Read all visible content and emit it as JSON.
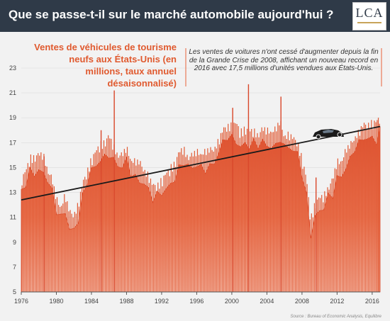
{
  "header": {
    "title": "Que se passe-t-il sur le marché automobile aujourd'hui ?",
    "logo_text": "LCA"
  },
  "chart_data": {
    "type": "area",
    "title": "Ventes de véhicules de tourisme neufs aux États-Unis (en millions, taux annuel désaisonnalisé)",
    "annotation": "Les ventes de voitures n'ont cessé d'augmenter depuis la fin de la Grande Crise de 2008, affichant un nouveau record en 2016 avec 17,5 millions d'unités vendues aux États-Unis.",
    "source": "Source : Bureau of Economic Analysis, Equilibre",
    "ylim": [
      5,
      23
    ],
    "xlim": [
      1976,
      2016.9
    ],
    "y_ticks": [
      5,
      7,
      9,
      11,
      13,
      15,
      17,
      19,
      21,
      23
    ],
    "x_ticks": [
      1976,
      1980,
      1984,
      1988,
      1992,
      1996,
      2000,
      2004,
      2008,
      2012,
      2016
    ],
    "series_color": "#e8613a",
    "trend_line": {
      "x": [
        1976,
        2016.9
      ],
      "y": [
        12.4,
        18.3
      ]
    },
    "x": [
      1976,
      1976.5,
      1977,
      1977.5,
      1978,
      1978.5,
      1979,
      1979.5,
      1980,
      1980.5,
      1981,
      1981.5,
      1982,
      1982.5,
      1983,
      1983.5,
      1984,
      1984.5,
      1985,
      1985.5,
      1986,
      1986.5,
      1987,
      1987.5,
      1988,
      1988.5,
      1989,
      1989.5,
      1990,
      1990.5,
      1991,
      1991.5,
      1992,
      1992.5,
      1993,
      1993.5,
      1994,
      1994.5,
      1995,
      1995.5,
      1996,
      1996.5,
      1997,
      1997.5,
      1998,
      1998.5,
      1999,
      1999.5,
      2000,
      2000.5,
      2001,
      2001.5,
      2002,
      2002.5,
      2003,
      2003.5,
      2004,
      2004.5,
      2005,
      2005.5,
      2006,
      2006.5,
      2007,
      2007.5,
      2008,
      2008.5,
      2009,
      2009.5,
      2010,
      2010.5,
      2011,
      2011.5,
      2012,
      2012.5,
      2013,
      2013.5,
      2014,
      2014.5,
      2015,
      2015.5,
      2016,
      2016.5,
      2016.9
    ],
    "values": [
      13.0,
      13.4,
      14.7,
      14.8,
      14.8,
      14.9,
      13.8,
      12.9,
      11.3,
      10.8,
      11.6,
      10.2,
      10.2,
      10.9,
      12.5,
      13.6,
      14.6,
      15.0,
      15.8,
      16.0,
      16.3,
      15.6,
      15.0,
      14.8,
      15.4,
      14.6,
      14.3,
      14.2,
      13.8,
      13.2,
      12.3,
      12.5,
      12.9,
      13.2,
      13.9,
      14.3,
      15.0,
      15.4,
      14.8,
      14.8,
      15.1,
      15.1,
      15.1,
      15.2,
      15.5,
      16.0,
      16.8,
      17.3,
      17.3,
      17.3,
      16.8,
      17.1,
      16.7,
      16.8,
      16.6,
      16.9,
      16.8,
      16.9,
      16.9,
      17.5,
      16.5,
      16.5,
      16.1,
      16.0,
      14.6,
      12.9,
      9.8,
      11.1,
      11.3,
      11.6,
      12.4,
      12.8,
      14.3,
      14.5,
      15.2,
      15.6,
      16.4,
      16.7,
      17.2,
      17.4,
      17.5,
      17.4,
      18.1
    ],
    "spikes": [
      {
        "x": 1986.6,
        "y": 21.2
      },
      {
        "x": 1985.1,
        "y": 18.0
      },
      {
        "x": 2001.9,
        "y": 21.7
      },
      {
        "x": 2005.6,
        "y": 20.7
      },
      {
        "x": 2000.1,
        "y": 19.8
      },
      {
        "x": 2009.6,
        "y": 14.2
      },
      {
        "x": 1978.6,
        "y": 15.9
      }
    ]
  }
}
